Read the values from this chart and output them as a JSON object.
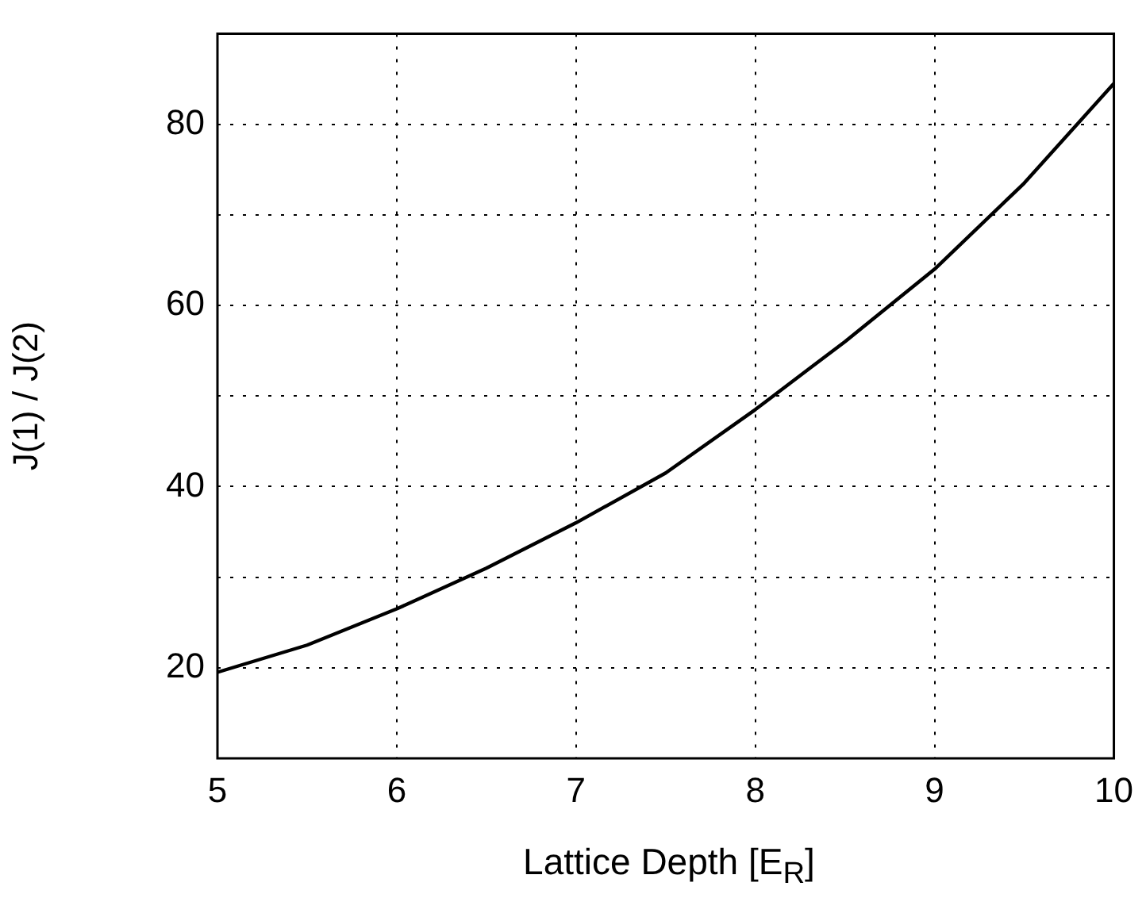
{
  "chart_data": {
    "type": "line",
    "xlabel": "Lattice Depth [E$_{R}$]",
    "ylabel": "J(1) / J(2)",
    "x": [
      5,
      5.5,
      6,
      6.5,
      7,
      7.5,
      8,
      8.5,
      9,
      9.5,
      10
    ],
    "series": [
      {
        "color": "#000000",
        "values": [
          19.5,
          22.5,
          26.5,
          31,
          36,
          41.5,
          48.5,
          56,
          64,
          73.5,
          84.5
        ]
      }
    ],
    "xlim": [
      5,
      10
    ],
    "xticks": [
      5,
      6,
      7,
      8,
      9,
      10
    ],
    "ylim": [
      10,
      90
    ],
    "yticks": [
      {
        "value": 10,
        "label": null
      },
      20,
      {
        "value": 30,
        "label": null
      },
      40,
      {
        "value": 50,
        "label": null
      },
      60,
      {
        "value": 70,
        "label": null
      },
      80,
      {
        "value": 90,
        "label": null
      }
    ],
    "grid": true,
    "marker": "none",
    "line_style": "solid"
  }
}
